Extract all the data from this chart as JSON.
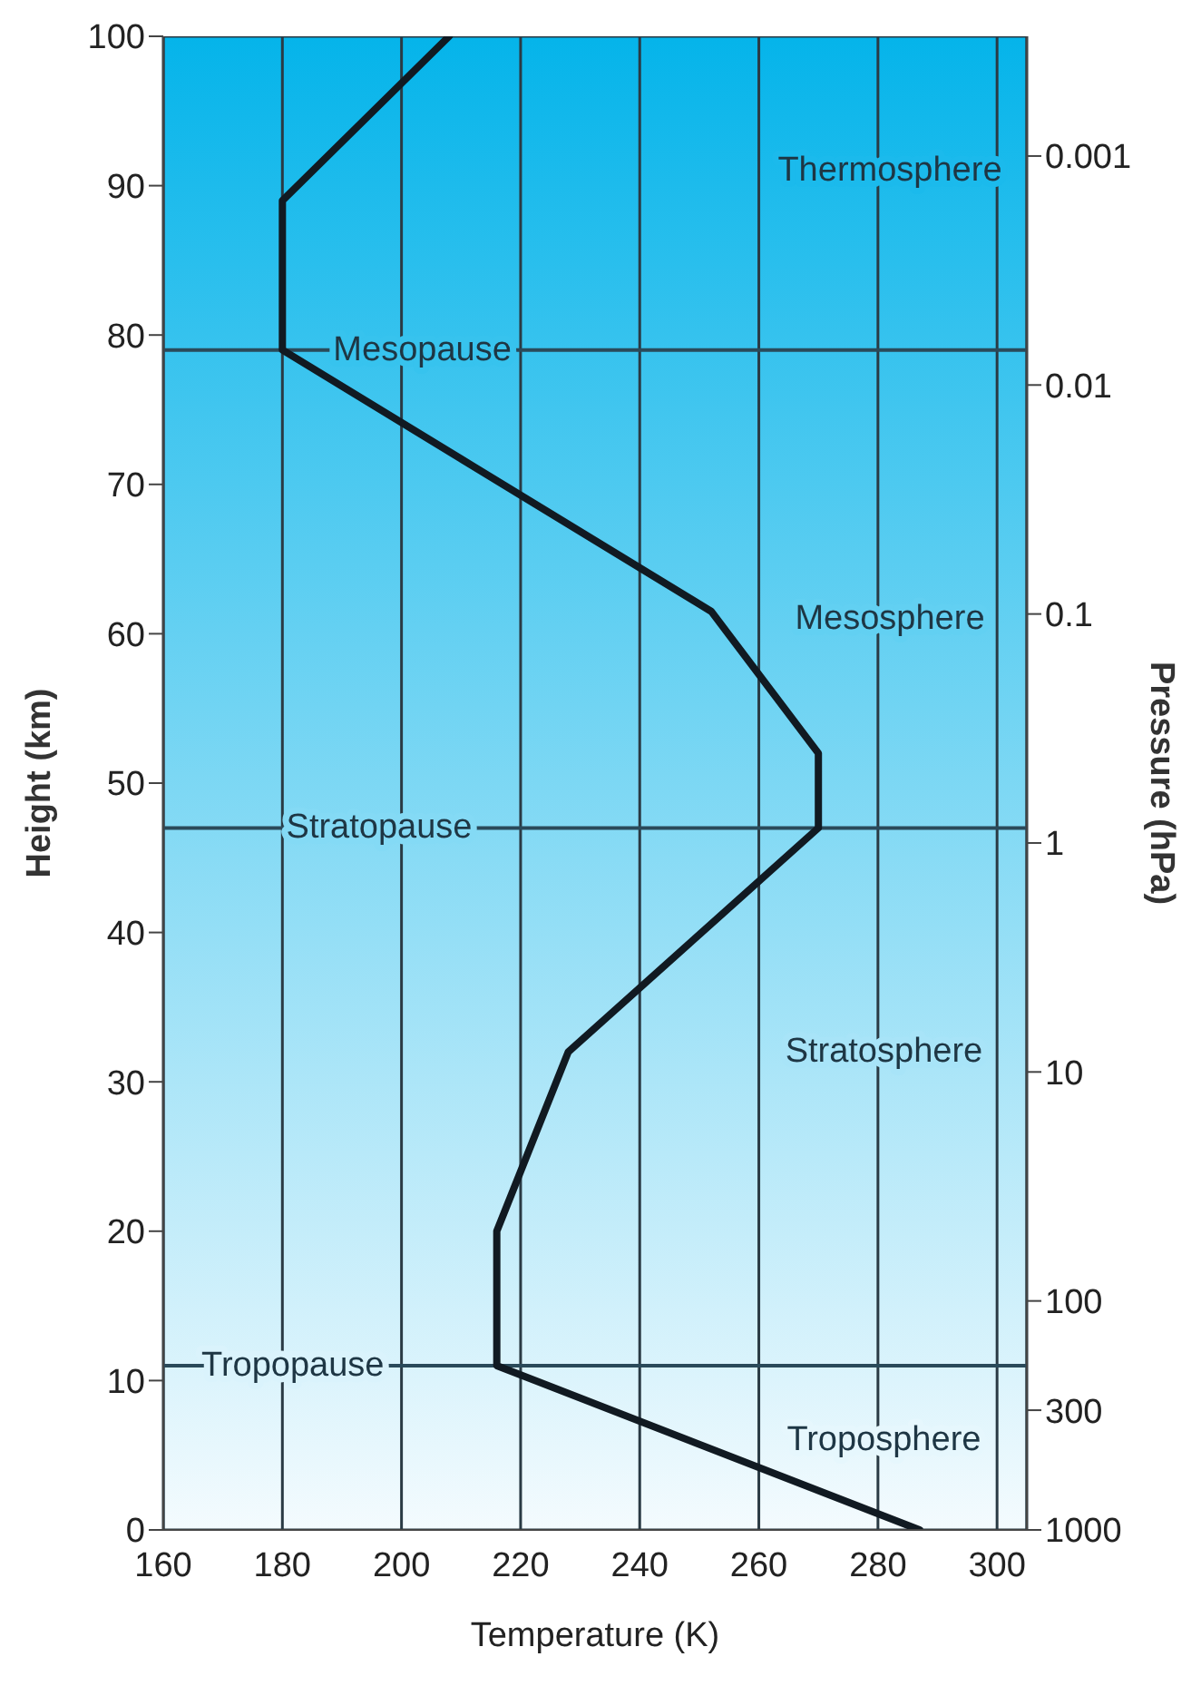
{
  "chart_data": {
    "type": "line",
    "xlabel": "Temperature (K)",
    "ylabel": "Height (km)",
    "y2label": "Pressure (hPa)",
    "series": [
      {
        "color": "#111a22",
        "x": [
          208,
          180,
          180,
          252,
          270,
          270,
          228,
          216,
          216,
          287
        ],
        "values": [
          100,
          89,
          79,
          61.5,
          52,
          47,
          32,
          20,
          11,
          0
        ]
      }
    ],
    "xlim": [
      160,
      305
    ],
    "xticks": [
      160,
      180,
      200,
      220,
      240,
      260,
      280,
      300
    ],
    "ylim": [
      0,
      100
    ],
    "yticks": [
      0,
      10,
      20,
      30,
      40,
      50,
      60,
      70,
      80,
      90,
      100
    ],
    "y2lim": [
      1000,
      0.0003
    ],
    "y2ticks": [
      1000,
      300,
      100,
      10,
      1,
      0.1,
      0.01,
      0.001
    ],
    "log": "y2",
    "ref_lines": [
      {
        "axis": "y",
        "value": 79,
        "label": "Mesopause",
        "color": "#2a4a5a"
      },
      {
        "axis": "y",
        "value": 47,
        "label": "Stratopause",
        "color": "#2a4a5a"
      },
      {
        "axis": "y",
        "value": 11,
        "label": "Tropopause",
        "color": "#2a4a5a"
      }
    ],
    "annotations": [
      "Thermosphere",
      "Mesosphere",
      "Stratosphere",
      "Troposphere"
    ],
    "grid": "x",
    "marker": "none",
    "line_style": "solid"
  }
}
